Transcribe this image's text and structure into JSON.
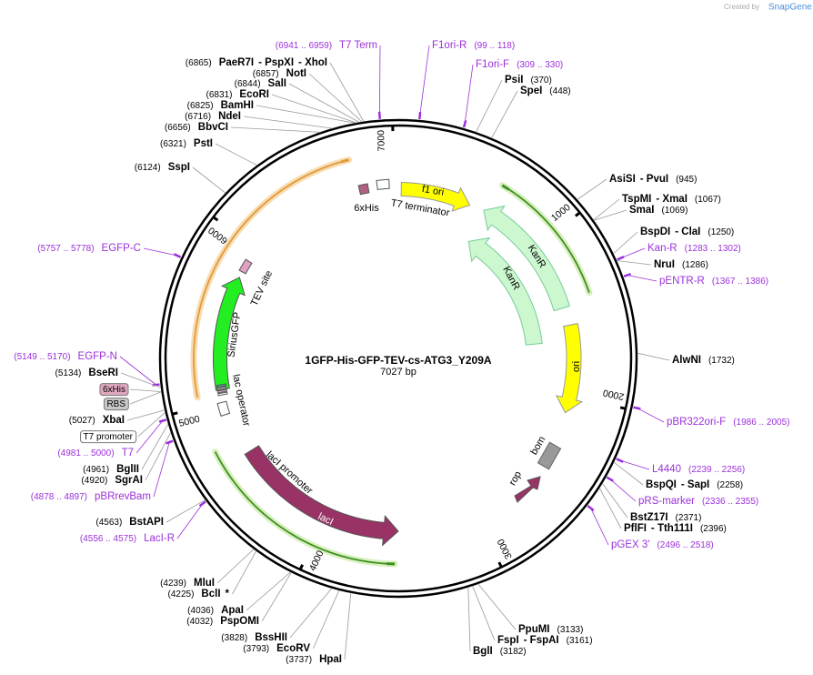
{
  "header": {
    "created_by": "Created by",
    "brand": "SnapGene"
  },
  "map": {
    "title": "1GFP-His-GFP-TEV-cs-ATG3_Y209A",
    "length": "7027 bp",
    "ticks": [
      "1000",
      "2000",
      "3000",
      "4000",
      "5000",
      "6000",
      "7000"
    ],
    "features": [
      "f1 ori",
      "T7 terminator",
      "6xHis",
      "KanR",
      "KanR",
      "ori",
      "bom",
      "rop",
      "lacI",
      "lacI promoter",
      "lac operator",
      "SiriusGFP",
      "TEV site"
    ],
    "left_labels": [
      [
        "(6941 .. 6959)",
        "T7 Term"
      ],
      [
        "(6865)",
        "PaeR7I",
        "- PspXI",
        "- XhoI"
      ],
      [
        "(6857)",
        "NotI"
      ],
      [
        "(6844)",
        "SalI"
      ],
      [
        "(6831)",
        "EcoRI"
      ],
      [
        "(6825)",
        "BamHI"
      ],
      [
        "(6716)",
        "NdeI"
      ],
      [
        "(6656)",
        "BbvCI"
      ],
      [
        "(6321)",
        "PstI"
      ],
      [
        "(6124)",
        "SspI"
      ],
      [
        "(5757 .. 5778)",
        "EGFP-C"
      ],
      [
        "(5149 .. 5170)",
        "EGFP-N"
      ],
      [
        "(5134)",
        "BseRI"
      ],
      [
        "6xHis"
      ],
      [
        "RBS"
      ],
      [
        "(5027)",
        "XbaI"
      ],
      [
        "T7 promoter"
      ],
      [
        "(4981 .. 5000)",
        "T7"
      ],
      [
        "(4961)",
        "BglII"
      ],
      [
        "(4920)",
        "SgrAI"
      ],
      [
        "(4878 .. 4897)",
        "pBRrevBam"
      ],
      [
        "(4563)",
        "BstAPI"
      ],
      [
        "(4556 .. 4575)",
        "LacI-R"
      ],
      [
        "(4239)",
        "MluI"
      ],
      [
        "(4225)",
        "BclI",
        "*"
      ],
      [
        "(4036)",
        "ApaI"
      ],
      [
        "(4032)",
        "PspOMI"
      ],
      [
        "(3828)",
        "BssHII"
      ],
      [
        "(3793)",
        "EcoRV"
      ],
      [
        "(3737)",
        "HpaI"
      ]
    ],
    "right_labels": [
      [
        "F1ori-R",
        "(99 .. 118)"
      ],
      [
        "F1ori-F",
        "(309 .. 330)"
      ],
      [
        "PsiI",
        "(370)"
      ],
      [
        "SpeI",
        "(448)"
      ],
      [
        "AsiSI",
        "- PvuI",
        "(945)"
      ],
      [
        "TspMI",
        "- XmaI",
        "(1067)"
      ],
      [
        "SmaI",
        "(1069)"
      ],
      [
        "BspDI",
        "- ClaI",
        "(1250)"
      ],
      [
        "Kan-R",
        "(1283 .. 1302)"
      ],
      [
        "NruI",
        "(1286)"
      ],
      [
        "pENTR-R",
        "(1367 .. 1386)"
      ],
      [
        "AlwNI",
        "(1732)"
      ],
      [
        "pBR322ori-F",
        "(1986 .. 2005)"
      ],
      [
        "L4440",
        "(2239 .. 2256)"
      ],
      [
        "BspQI",
        "- SapI",
        "(2258)"
      ],
      [
        "pRS-marker",
        "(2336 .. 2355)"
      ],
      [
        "BstZ17I",
        "(2371)"
      ],
      [
        "PflFI",
        "- Tth111I",
        "(2396)"
      ],
      [
        "pGEX 3'",
        "(2496 .. 2518)"
      ],
      [
        "PpuMI",
        "(3133)"
      ],
      [
        "FspI",
        "- FspAI",
        "(3161)"
      ],
      [
        "BglI",
        "(3182)"
      ]
    ]
  }
}
